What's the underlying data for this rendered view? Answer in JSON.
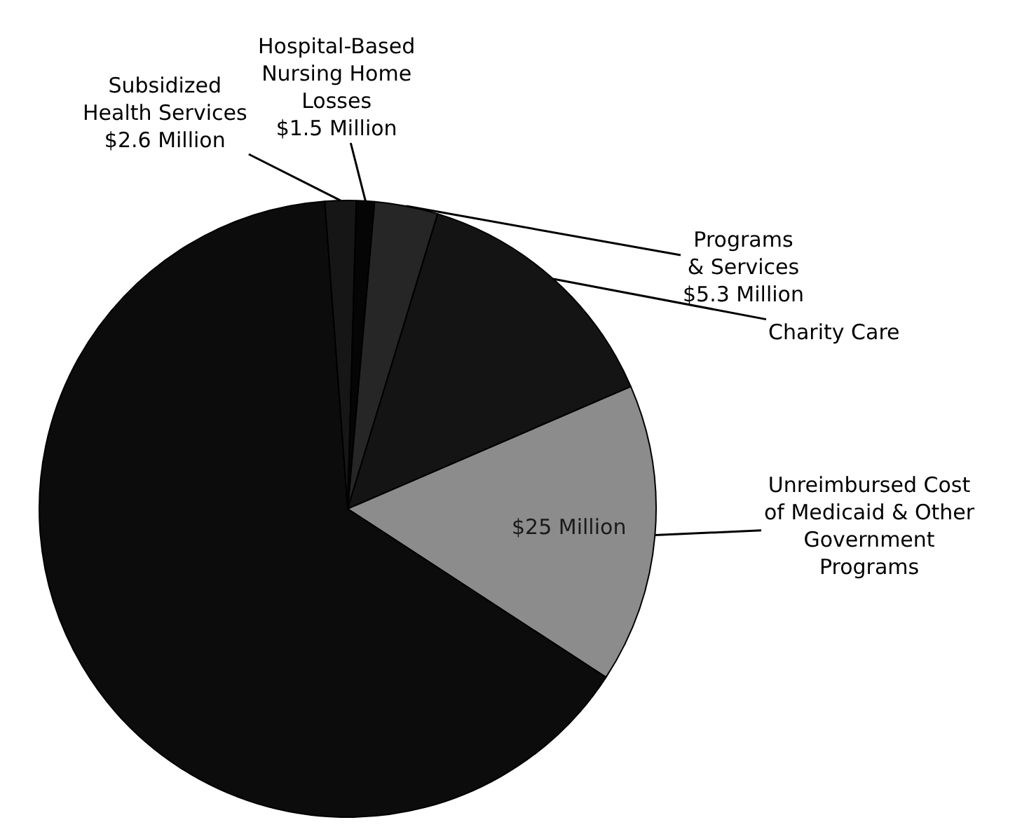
{
  "chart_data": {
    "type": "pie",
    "categories": [
      "Programs\n& Services",
      "Charity Care",
      "Unreimbursed Cost\nof Medicaid & Other\nGovernment\nPrograms",
      null,
      "Subsidized\nHealth Services",
      "Hospital-Based\nNursing Home\nLosses"
    ],
    "values": [
      5.3,
      22,
      25,
      103,
      2.6,
      1.5
    ],
    "value_labels": [
      "$5.3 Million",
      null,
      "$25 Million",
      null,
      "$2.6 Million",
      "$1.5 Million"
    ],
    "colors": [
      "#262626",
      "#141414",
      "#8c8c8c",
      "#0c0c0c",
      "#161616",
      "#050505"
    ]
  }
}
